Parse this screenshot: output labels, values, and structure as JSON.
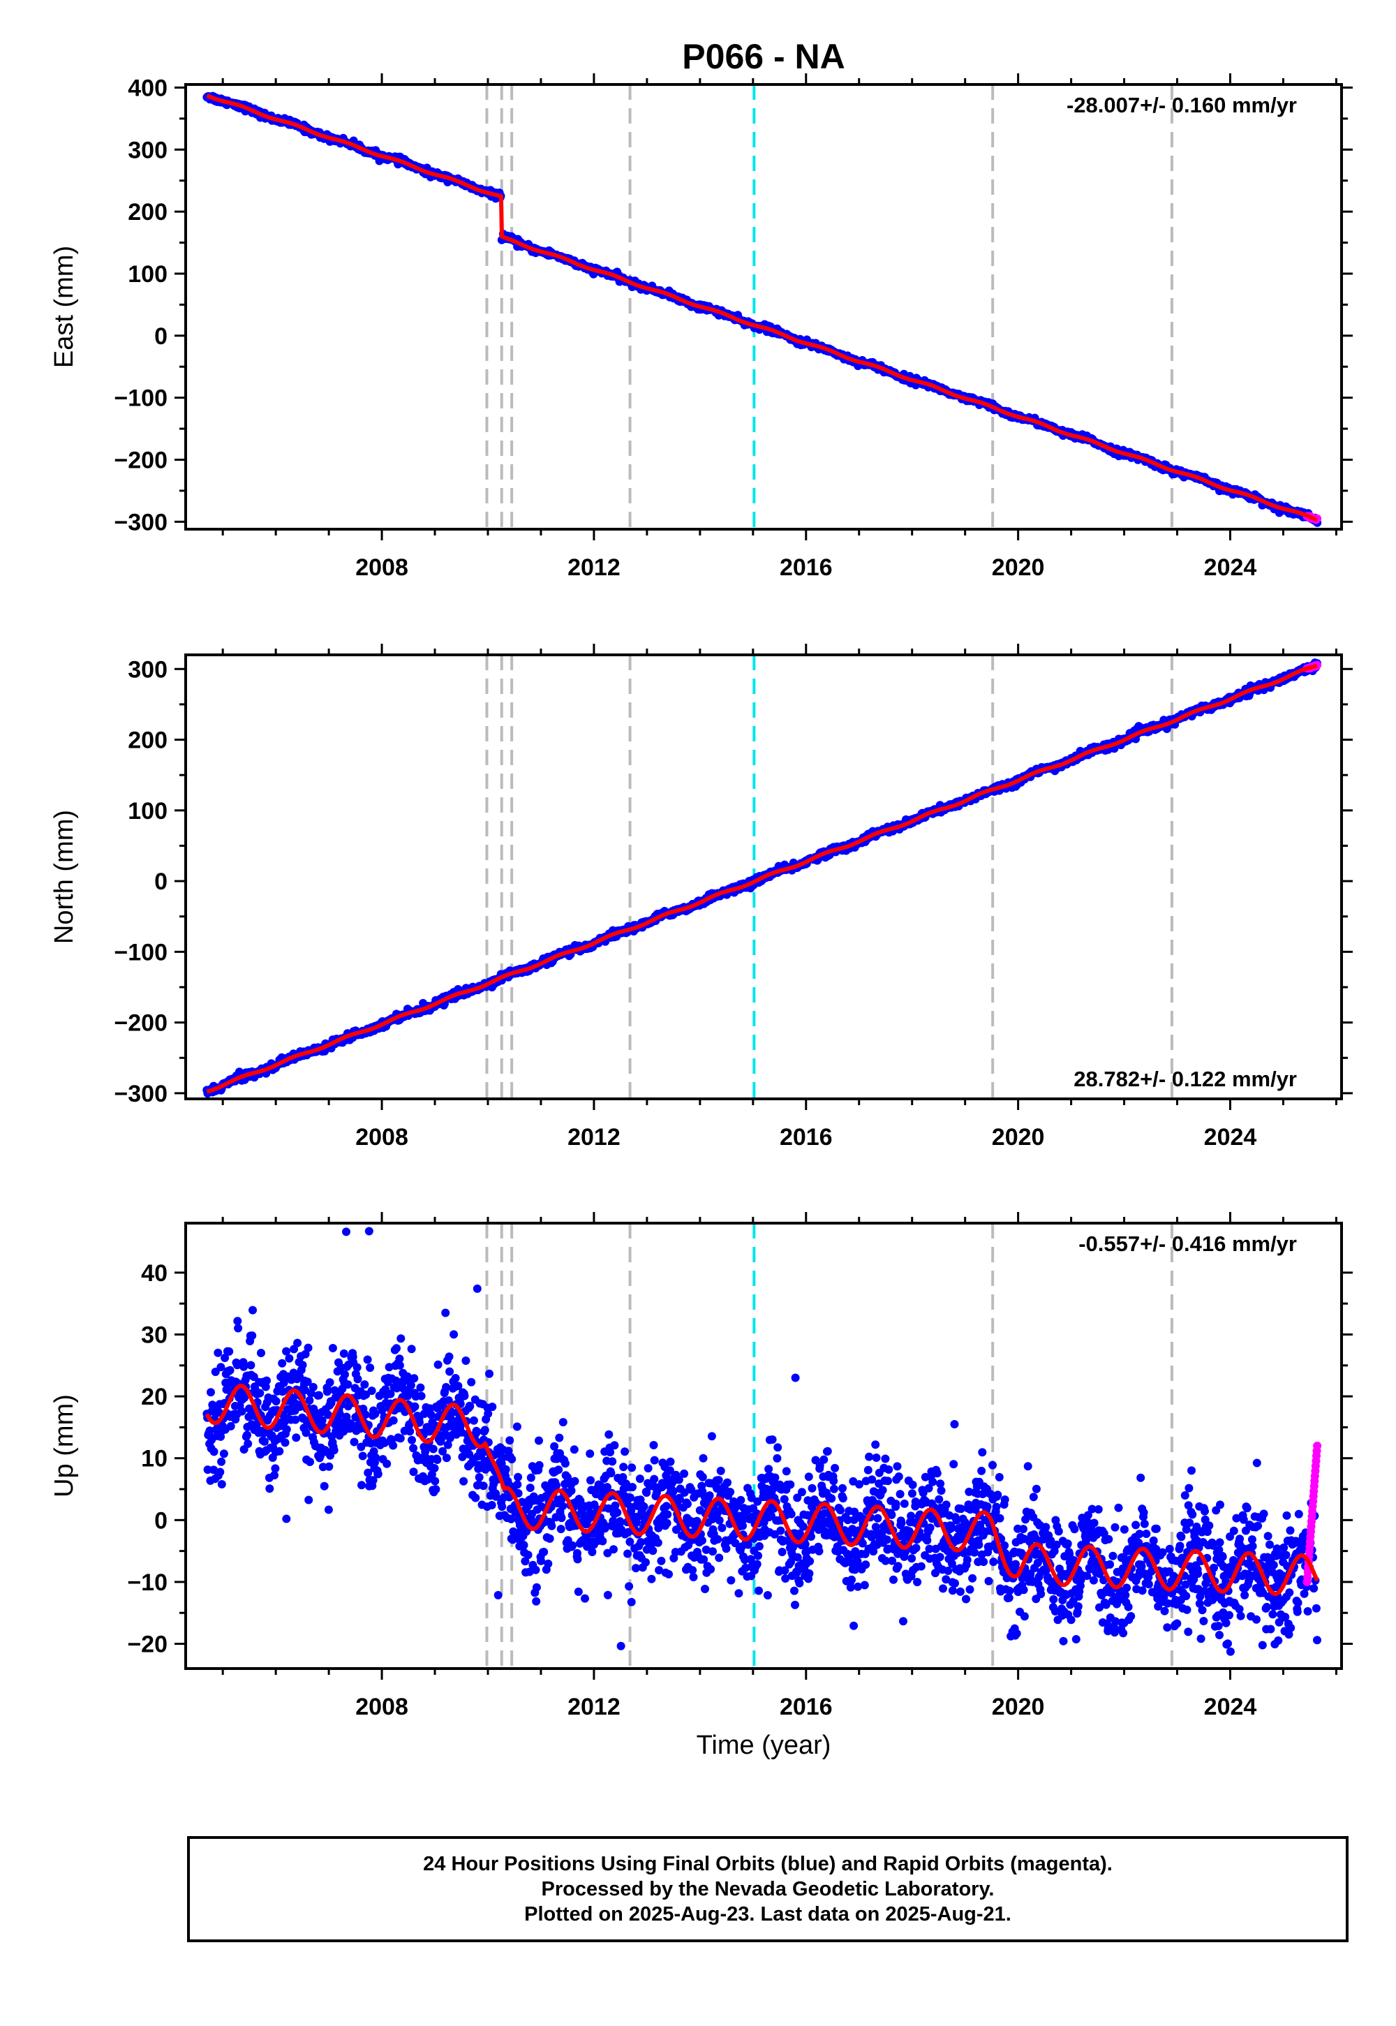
{
  "chart_data": {
    "title": "P066 - NA",
    "xlabel": "Time (year)",
    "x_ticks": [
      2008,
      2012,
      2016,
      2020,
      2024
    ],
    "xlim": [
      2004.3,
      2026.1
    ],
    "data_start": 2004.7,
    "data_end": 2025.64,
    "rapid_start": 2025.45,
    "offset_epoch": 2010.25,
    "event_lines": {
      "gray": [
        2009.98,
        2010.26,
        2010.45,
        2012.68,
        2019.52,
        2022.9
      ],
      "cyan": [
        2015.02
      ]
    },
    "colors": {
      "final": "#0000ff",
      "rapid": "#ff00ff",
      "model": "#ff0000",
      "event_gray": "#bbbbbb",
      "event_cyan": "#00e5ee"
    },
    "panels": [
      {
        "type": "scatter",
        "component": "east",
        "ylabel": "East (mm)",
        "ylim": [
          -312,
          405
        ],
        "y_ticks": [
          400,
          300,
          200,
          100,
          0,
          -100,
          -200,
          -300
        ],
        "rate_label": "-28.007+/- 0.160 mm/yr",
        "rate_position": "top-right",
        "start_value": 388,
        "offset_mm": -65,
        "end_value": -297,
        "annual_amplitude": 1.5,
        "noise_mm": 2.5
      },
      {
        "type": "scatter",
        "component": "north",
        "ylabel": "North (mm)",
        "ylim": [
          -308,
          320
        ],
        "y_ticks": [
          300,
          200,
          100,
          0,
          -100,
          -200,
          -300
        ],
        "rate_label": "28.782+/- 0.122 mm/yr",
        "rate_position": "bottom-right",
        "start_value": -297,
        "offset_mm": 0,
        "end_value": 305,
        "annual_amplitude": 1.5,
        "noise_mm": 2.5
      },
      {
        "type": "scatter",
        "component": "up",
        "ylabel": "Up (mm)",
        "ylim": [
          -24,
          48
        ],
        "y_ticks": [
          40,
          30,
          20,
          10,
          0,
          -10,
          -20
        ],
        "rate_label": "-0.557+/- 0.416 mm/yr",
        "rate_position": "top-right",
        "model_nodes": [
          [
            2004.7,
            19
          ],
          [
            2009.95,
            15
          ],
          [
            2010.3,
            2
          ],
          [
            2012.7,
            1
          ],
          [
            2015.0,
            0
          ],
          [
            2019.5,
            -2
          ],
          [
            2020.0,
            -7
          ],
          [
            2025.6,
            -9
          ]
        ],
        "annual_amplitude": 3.2,
        "noise_mm": 4.5,
        "outliers": [
          [
            2007.76,
            46.7
          ],
          [
            2009.2,
            33.5
          ],
          [
            2009.8,
            37.4
          ],
          [
            2006.2,
            0.2
          ],
          [
            2015.8,
            23.0
          ],
          [
            2018.8,
            15.5
          ]
        ]
      }
    ]
  },
  "footer": {
    "line1": "24 Hour Positions Using Final Orbits (blue) and Rapid Orbits (magenta).",
    "line2": "Processed by the Nevada Geodetic Laboratory.",
    "line3": "Plotted on 2025-Aug-23. Last data on 2025-Aug-21."
  }
}
